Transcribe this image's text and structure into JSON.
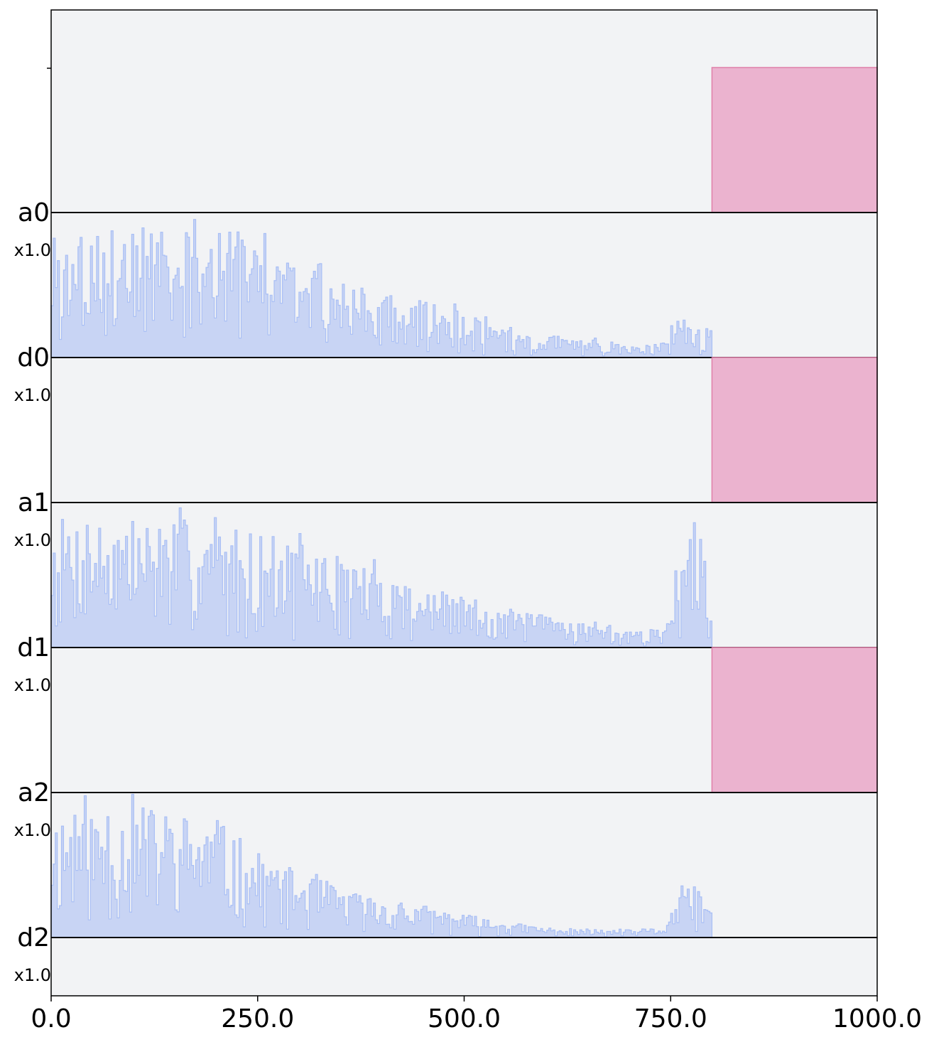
{
  "chart_data": {
    "type": "area",
    "title": "",
    "xlabel": "",
    "ylabel": "",
    "xlim": [
      0,
      1000
    ],
    "x_ticks": [
      "0.0",
      "250.0",
      "500.0",
      "750.0",
      "1000.0"
    ],
    "grid": false,
    "legend": "none",
    "colors": {
      "background": "#f2f3f5",
      "analog_fill": "#ebb3cf",
      "analog_edge": "#e07fa9",
      "digital_fill": "#c8d4f4",
      "digital_edge": "#a9bff5",
      "baseline": "#000000"
    },
    "tracks": [
      {
        "label": "a0",
        "scale": "",
        "kind": "analog",
        "segments": [
          {
            "start": 800,
            "end": 1000,
            "level": 1.0
          }
        ]
      },
      {
        "label": "d0",
        "scale": "x1.0",
        "kind": "digital",
        "end": 800,
        "envelope": [
          [
            0,
            1.0
          ],
          [
            150,
            1.0
          ],
          [
            250,
            0.95
          ],
          [
            300,
            0.8
          ],
          [
            400,
            0.5
          ],
          [
            450,
            0.45
          ],
          [
            500,
            0.35
          ],
          [
            550,
            0.22
          ],
          [
            600,
            0.17
          ],
          [
            650,
            0.15
          ],
          [
            700,
            0.09
          ],
          [
            740,
            0.12
          ],
          [
            760,
            0.45
          ],
          [
            780,
            0.3
          ],
          [
            800,
            0.25
          ]
        ],
        "seed": 3
      },
      {
        "label": "a1",
        "scale": "x1.0",
        "kind": "analog",
        "segments": [
          {
            "start": 800,
            "end": 1000,
            "level": 1.0
          }
        ]
      },
      {
        "label": "d1",
        "scale": "x1.0",
        "kind": "digital",
        "end": 800,
        "envelope": [
          [
            0,
            1.0
          ],
          [
            150,
            1.0
          ],
          [
            250,
            0.9
          ],
          [
            300,
            0.8
          ],
          [
            400,
            0.6
          ],
          [
            450,
            0.45
          ],
          [
            500,
            0.4
          ],
          [
            550,
            0.3
          ],
          [
            600,
            0.25
          ],
          [
            650,
            0.2
          ],
          [
            700,
            0.12
          ],
          [
            740,
            0.15
          ],
          [
            760,
            0.75
          ],
          [
            780,
            0.9
          ],
          [
            800,
            0.45
          ]
        ],
        "seed": 7
      },
      {
        "label": "a2",
        "scale": "x1.0",
        "kind": "analog",
        "segments": [
          {
            "start": 800,
            "end": 1000,
            "level": 1.0
          }
        ]
      },
      {
        "label": "d2",
        "scale": "x1.0",
        "kind": "digital",
        "end": 800,
        "envelope": [
          [
            0,
            1.0
          ],
          [
            130,
            1.0
          ],
          [
            200,
            0.9
          ],
          [
            250,
            0.65
          ],
          [
            300,
            0.5
          ],
          [
            350,
            0.38
          ],
          [
            400,
            0.3
          ],
          [
            450,
            0.25
          ],
          [
            500,
            0.18
          ],
          [
            550,
            0.12
          ],
          [
            600,
            0.08
          ],
          [
            650,
            0.06
          ],
          [
            700,
            0.06
          ],
          [
            740,
            0.08
          ],
          [
            760,
            0.35
          ],
          [
            780,
            0.4
          ],
          [
            800,
            0.2
          ]
        ],
        "seed": 11
      },
      {
        "label": "",
        "scale": "x1.0",
        "kind": "empty"
      }
    ]
  }
}
